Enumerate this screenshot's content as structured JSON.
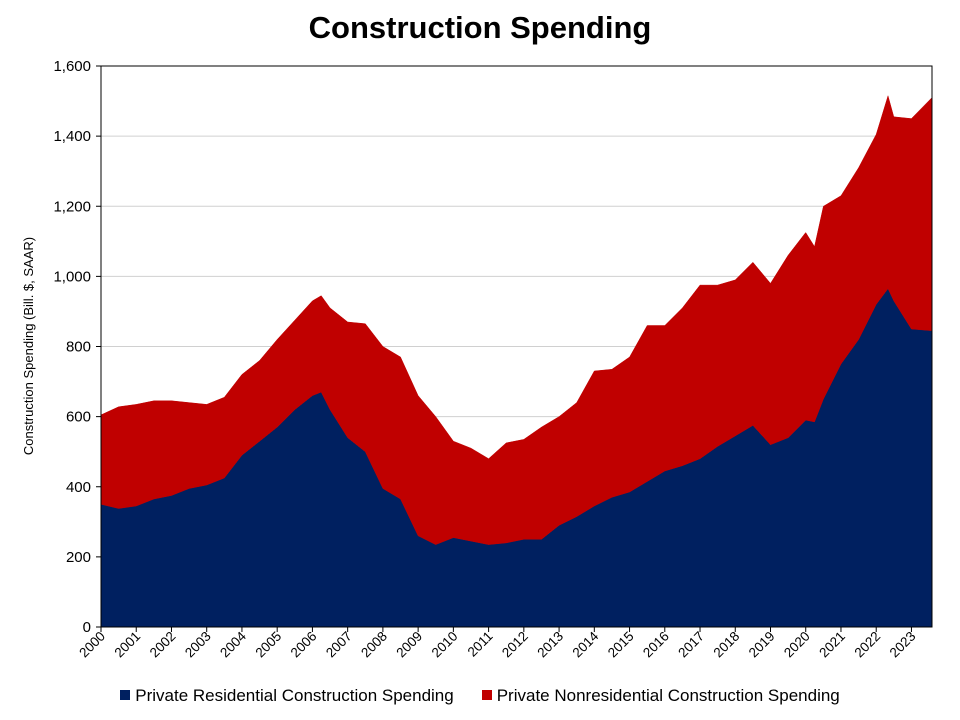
{
  "chart_data": {
    "type": "area",
    "stacked": true,
    "title": "Construction Spending",
    "xlabel": "",
    "ylabel": "Construction Spending (Bill. $, SAAR)",
    "ylim": [
      0,
      1600
    ],
    "xlim": [
      "2000-01",
      "2023-08"
    ],
    "yticks": [
      "0",
      "200",
      "400",
      "600",
      "800",
      "1,000",
      "1,200",
      "1,400",
      "1,600"
    ],
    "xticks": [
      "2000",
      "2001",
      "2002",
      "2003",
      "2004",
      "2005",
      "2006",
      "2007",
      "2008",
      "2009",
      "2010",
      "2011",
      "2012",
      "2013",
      "2014",
      "2015",
      "2016",
      "2017",
      "2018",
      "2019",
      "2020",
      "2021",
      "2022",
      "2023"
    ],
    "grid": "horizontal",
    "legend_position": "bottom",
    "x": [
      "2000-01",
      "2000-07",
      "2001-01",
      "2001-07",
      "2002-01",
      "2002-07",
      "2003-01",
      "2003-07",
      "2004-01",
      "2004-07",
      "2005-01",
      "2005-07",
      "2006-01",
      "2006-04",
      "2006-07",
      "2007-01",
      "2007-07",
      "2008-01",
      "2008-07",
      "2009-01",
      "2009-07",
      "2010-01",
      "2010-07",
      "2011-01",
      "2011-07",
      "2012-01",
      "2012-07",
      "2013-01",
      "2013-07",
      "2014-01",
      "2014-07",
      "2015-01",
      "2015-07",
      "2016-01",
      "2016-07",
      "2017-01",
      "2017-07",
      "2018-01",
      "2018-07",
      "2019-01",
      "2019-07",
      "2020-01",
      "2020-04",
      "2020-07",
      "2021-01",
      "2021-07",
      "2022-01",
      "2022-05",
      "2022-07",
      "2023-01",
      "2023-08"
    ],
    "series": [
      {
        "name": "Private Residential Construction Spending",
        "color": "#002060",
        "values": [
          350,
          338,
          345,
          365,
          375,
          395,
          405,
          425,
          490,
          530,
          570,
          620,
          660,
          670,
          620,
          540,
          500,
          395,
          365,
          260,
          235,
          255,
          245,
          235,
          240,
          250,
          250,
          290,
          315,
          345,
          370,
          385,
          415,
          445,
          460,
          480,
          515,
          545,
          575,
          520,
          540,
          590,
          585,
          650,
          750,
          820,
          920,
          965,
          930,
          850,
          845
        ]
      },
      {
        "name": "Private Nonresidential Construction Spending",
        "color": "#C00000",
        "values": [
          255,
          290,
          290,
          280,
          270,
          245,
          230,
          230,
          230,
          230,
          250,
          255,
          270,
          275,
          290,
          330,
          365,
          405,
          405,
          400,
          365,
          275,
          265,
          245,
          285,
          285,
          320,
          310,
          325,
          385,
          365,
          385,
          445,
          415,
          450,
          495,
          460,
          445,
          465,
          460,
          520,
          535,
          500,
          550,
          480,
          490,
          485,
          550,
          525,
          600,
          665
        ]
      }
    ]
  }
}
